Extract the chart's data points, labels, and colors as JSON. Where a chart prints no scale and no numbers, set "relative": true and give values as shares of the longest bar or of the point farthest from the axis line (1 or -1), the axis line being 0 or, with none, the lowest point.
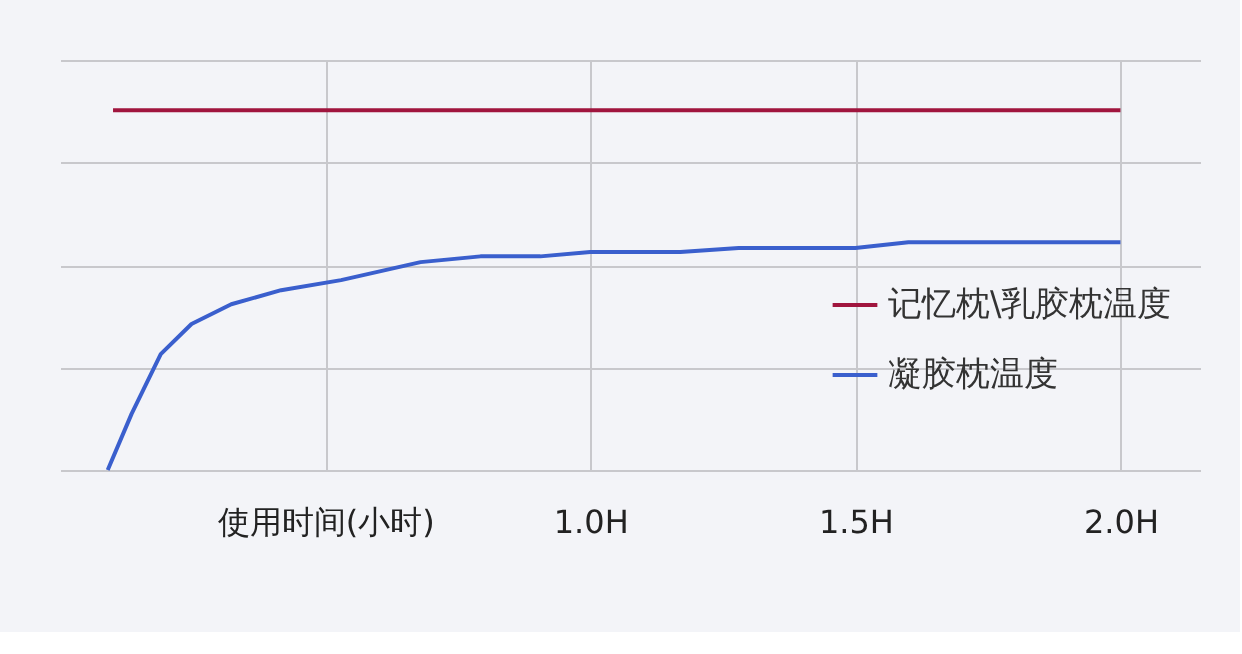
{
  "chart_data": {
    "type": "line",
    "relative": true,
    "xlim": [
      0,
      2.15
    ],
    "xticks": [
      {
        "value": 0.5,
        "label": "使用时间(小时)"
      },
      {
        "value": 1.0,
        "label": "1.0H"
      },
      {
        "value": 1.5,
        "label": "1.5H"
      },
      {
        "value": 2.0,
        "label": "2.0H"
      }
    ],
    "grid": true,
    "legend": "right",
    "line_style": "solid",
    "marker": "none",
    "series": [
      {
        "name": "记忆枕\\乳胶枕温度",
        "color": "#a0153e",
        "x": [
          0.1,
          2.0
        ],
        "values": [
          1,
          1
        ]
      },
      {
        "name": "凝胶枕温度",
        "color": "#3a5fcd",
        "x": [
          0.09,
          0.135,
          0.19,
          0.248,
          0.323,
          0.417,
          0.53,
          0.68,
          0.793,
          0.906,
          1.0,
          1.17,
          1.28,
          1.5,
          1.6,
          2.0
        ],
        "values": [
          0,
          0.156,
          0.322,
          0.406,
          0.461,
          0.5,
          0.528,
          0.578,
          0.594,
          0.594,
          0.606,
          0.606,
          0.617,
          0.617,
          0.633,
          0.633
        ]
      }
    ]
  }
}
